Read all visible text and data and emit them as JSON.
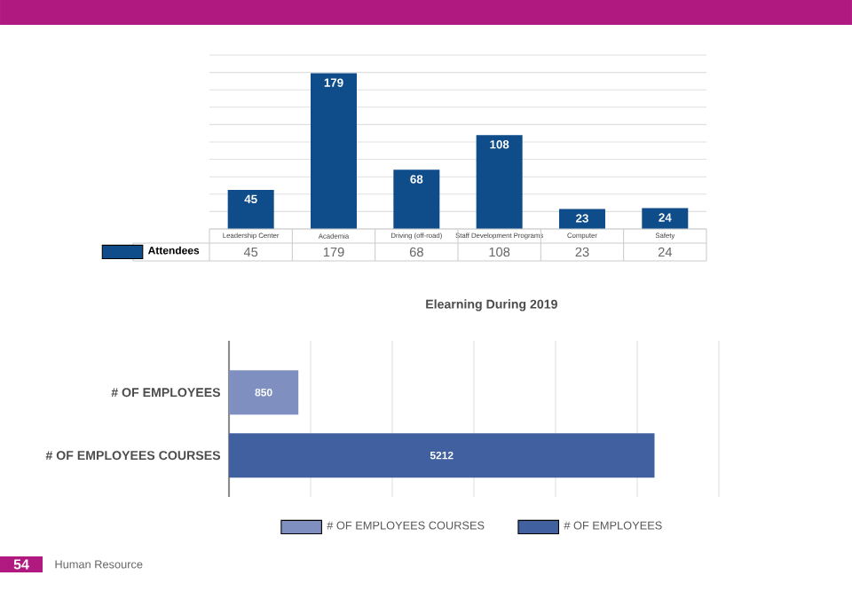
{
  "chart_data": [
    {
      "type": "bar",
      "categories": [
        "Leadership Center",
        "Academia",
        "Driving (off-road)",
        "Staff Development Programs",
        "Computer",
        "Safety"
      ],
      "series": [
        {
          "name": "Attendees",
          "color": "#0f4c8a",
          "values": [
            45,
            179,
            68,
            108,
            23,
            24
          ]
        }
      ],
      "ylim": [
        0,
        200
      ],
      "yticks": [
        {
          "value": 0,
          "label": null
        },
        {
          "value": 20,
          "label": null
        },
        {
          "value": 40,
          "label": null
        },
        {
          "value": 60,
          "label": null
        },
        {
          "value": 80,
          "label": null
        },
        {
          "value": 100,
          "label": null
        },
        {
          "value": 120,
          "label": null
        },
        {
          "value": 140,
          "label": null
        },
        {
          "value": 160,
          "label": null
        },
        {
          "value": 180,
          "label": null
        },
        {
          "value": 200,
          "label": null
        }
      ],
      "value_labels": [
        "45",
        "179",
        "68",
        "108",
        "23",
        "24"
      ],
      "grid": "y",
      "tick_labels": "x",
      "data_labels": true,
      "legend": "bottom left"
    },
    {
      "type": "bar",
      "orientation": "horizontal",
      "title": "Elearning During 2019",
      "categories": [
        "# OF EMPLOYEES",
        "# OF EMPLOYEES COURSES"
      ],
      "series": [
        {
          "name": "# OF EMPLOYEES COURSES",
          "color": "#7f8fbf",
          "values": [
            850,
            null
          ]
        },
        {
          "name": "# OF EMPLOYEES",
          "color": "#41609f",
          "values": [
            null,
            5212
          ]
        }
      ],
      "xlim": [
        0,
        6000
      ],
      "xticks": [
        {
          "value": 0,
          "label": null
        },
        {
          "value": 1000,
          "label": null
        },
        {
          "value": 2000,
          "label": null
        },
        {
          "value": 3000,
          "label": null
        },
        {
          "value": 4000,
          "label": null
        },
        {
          "value": 5000,
          "label": null
        },
        {
          "value": 6000,
          "label": null
        }
      ],
      "grid": "x",
      "tick_labels": "y",
      "data_labels": true,
      "legend": "bottom",
      "annotations": [
        "54",
        "Human Resource"
      ]
    }
  ]
}
